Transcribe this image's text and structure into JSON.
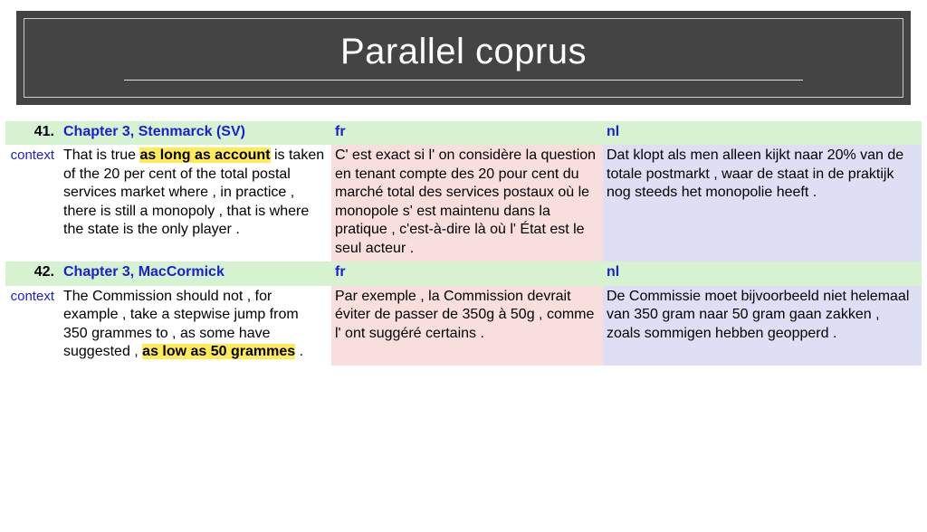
{
  "header": {
    "title": "Parallel coprus"
  },
  "colors": {
    "header_bg": "#444444",
    "header_text": "#ffffff",
    "rule": "#dddddd",
    "row_green": "#d6f2d0",
    "row_white": "#ffffff",
    "row_pink": "#f9dede",
    "row_lavender": "#dedef5",
    "link_blue": "#1a1fd6",
    "highlight": "#ffec55"
  },
  "labels": {
    "context": "context",
    "fr": "fr",
    "nl": "nl"
  },
  "entries": [
    {
      "num": "41.",
      "title": "Chapter 3, Stenmarck (SV)",
      "en_pre": "That is true ",
      "en_hl": "as long as account",
      "en_post": " is taken of the 20 per cent of the total postal services market where , in practice , there is still a monopoly , that is where the state is the only player .",
      "fr": "C' est exact si l' on considère la question en tenant compte des 20 pour cent du marché total des services postaux où le monopole s' est maintenu dans la pratique , c'est-à-dire là où l' État est le seul acteur .",
      "nl": "Dat klopt als men alleen kijkt naar 20% van de totale postmarkt , waar de staat in de praktijk nog steeds het monopolie heeft ."
    },
    {
      "num": "42.",
      "title": "Chapter 3, MacCormick",
      "en_pre": "The Commission should not , for example , take a stepwise jump from 350 grammes to , as some have suggested , ",
      "en_hl": "as low as 50 grammes",
      "en_post": " .",
      "fr": "Par exemple , la Commission devrait éviter de passer de 350g à 50g , comme l' ont suggéré certains .",
      "nl": "De Commissie moet bijvoorbeeld niet helemaal van 350 gram naar 50 gram gaan zakken , zoals sommigen hebben geopperd ."
    }
  ]
}
